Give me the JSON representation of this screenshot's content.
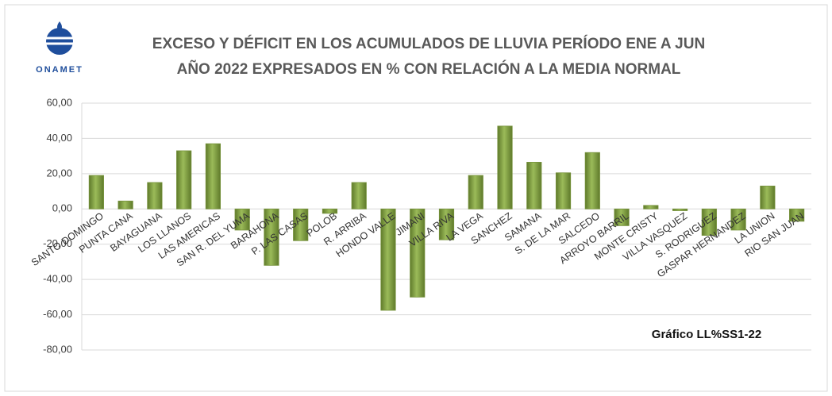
{
  "chart_data": {
    "type": "bar",
    "title": [
      "EXCESO Y DÉFICIT EN LOS ACUMULADOS DE LLUVIA PERÍODO ENE A JUN",
      "AÑO 2022 EXPRESADOS EN % CON RELACIÓN A LA MEDIA NORMAL"
    ],
    "logo_text": "ONAMET",
    "annotation": "Gráfico LL%SS1-22",
    "categories": [
      "SANTO DOMINGO",
      "PUNTA CANA",
      "BAYAGUANA",
      "LOS LLANOS",
      "LAS AMERICAS",
      "SAN R. DEL YUMA",
      "BARAHONA",
      "P. LAS CASAS",
      "POLOB",
      "R. ARRIBA",
      "HONDO VALLE",
      "JIMANI",
      "VILLA RIVA",
      "LA VEGA",
      "SANCHEZ",
      "SAMANA",
      "S. DE LA MAR",
      "SALCEDO",
      "ARROYO BARRIL",
      "MONTE CRISTY",
      "VILLA VASQUEZ",
      "S. RODRIGUEZ",
      "GASPAR HERNANDEZ",
      "LA UNION",
      "RIO SAN JUAN"
    ],
    "values": [
      19,
      4.5,
      15,
      33,
      37,
      -12,
      -32,
      -18,
      -2.5,
      15,
      -57.5,
      -50,
      -17.5,
      19,
      47,
      26.5,
      20.5,
      32,
      -9.5,
      2,
      -1,
      -15,
      -12,
      13,
      -7
    ],
    "color": "#77933c",
    "ylim": [
      -80,
      60
    ],
    "yticks": [
      {
        "value": -80,
        "label": "-80,00"
      },
      {
        "value": -60,
        "label": "-60,00"
      },
      {
        "value": -40,
        "label": "-40,00"
      },
      {
        "value": -20,
        "label": "-20,00"
      },
      {
        "value": 0,
        "label": "0,00"
      },
      {
        "value": 20,
        "label": "20,00"
      },
      {
        "value": 40,
        "label": "40,00"
      },
      {
        "value": 60,
        "label": "60,00"
      }
    ],
    "grid": true
  }
}
